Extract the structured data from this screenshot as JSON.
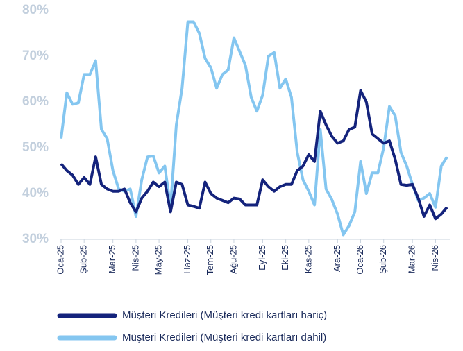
{
  "chart_data": {
    "type": "line",
    "categories": [
      "Oca-25",
      null,
      null,
      null,
      "Şub-25",
      null,
      null,
      null,
      null,
      "Mar-25",
      null,
      null,
      null,
      "Nis-25",
      null,
      null,
      null,
      "May-25",
      null,
      null,
      null,
      null,
      "Haz-25",
      null,
      null,
      null,
      "Tem-25",
      null,
      null,
      null,
      "Ağu-25",
      null,
      null,
      null,
      null,
      "Eyl-25",
      null,
      null,
      null,
      "Eki-25",
      null,
      null,
      null,
      "Kas-25",
      null,
      null,
      null,
      null,
      "Ara-25",
      null,
      null,
      null,
      "Oca-26",
      null,
      null,
      null,
      "Şub-26",
      null,
      null,
      null,
      null,
      "Mar-26",
      null,
      null,
      null,
      "Nis-26",
      null,
      null
    ],
    "series": [
      {
        "name": "Müşteri Kredileri (Müşteri kredi kartları hariç)",
        "color": "#14237c",
        "values": [
          46.5,
          45,
          44,
          42,
          43.5,
          42,
          48,
          42,
          41,
          40.5,
          40.5,
          41,
          38,
          36,
          39,
          40.5,
          42.5,
          41.5,
          42.5,
          36,
          42.5,
          42,
          37.5,
          37.2,
          36.8,
          42.5,
          40,
          39,
          38.5,
          38,
          39,
          38.8,
          37.5,
          37.5,
          37.5,
          43,
          41.5,
          40.5,
          41.5,
          42,
          42,
          45,
          46,
          48.5,
          47,
          58,
          55,
          52.5,
          51,
          51.5,
          54,
          54.5,
          62.5,
          60,
          53,
          52,
          51,
          51.5,
          47.5,
          42,
          41.8,
          42,
          39,
          35,
          37.5,
          34.5,
          35.5,
          37
        ]
      },
      {
        "name": "Müşteri Kredileri (Müşteri kredi kartları dahil)",
        "color": "#84c6f0",
        "values": [
          52,
          62,
          59.5,
          59.8,
          66,
          66,
          69,
          54,
          52,
          45,
          41,
          40.5,
          41,
          35,
          43,
          48,
          48.2,
          44.5,
          46,
          37,
          55,
          63,
          77.5,
          77.5,
          75,
          69.5,
          67.5,
          63,
          66,
          67,
          74,
          71,
          68,
          61,
          58,
          61.5,
          70,
          70.8,
          63,
          65,
          61,
          49,
          43,
          40.5,
          37.5,
          54,
          41,
          38.7,
          35.5,
          31,
          33,
          36,
          47,
          40,
          44.5,
          44.5,
          50,
          59,
          57,
          49,
          46,
          42,
          38.5,
          39,
          40,
          37,
          46,
          48
        ]
      }
    ],
    "ylim": [
      30,
      80
    ],
    "yticks": [
      {
        "value": 30,
        "label": "30%"
      },
      {
        "value": 40,
        "label": "40%"
      },
      {
        "value": 50,
        "label": "50%"
      },
      {
        "value": 60,
        "label": "60%"
      },
      {
        "value": 70,
        "label": "70%"
      },
      {
        "value": 80,
        "label": "80%"
      }
    ],
    "grid": false
  }
}
